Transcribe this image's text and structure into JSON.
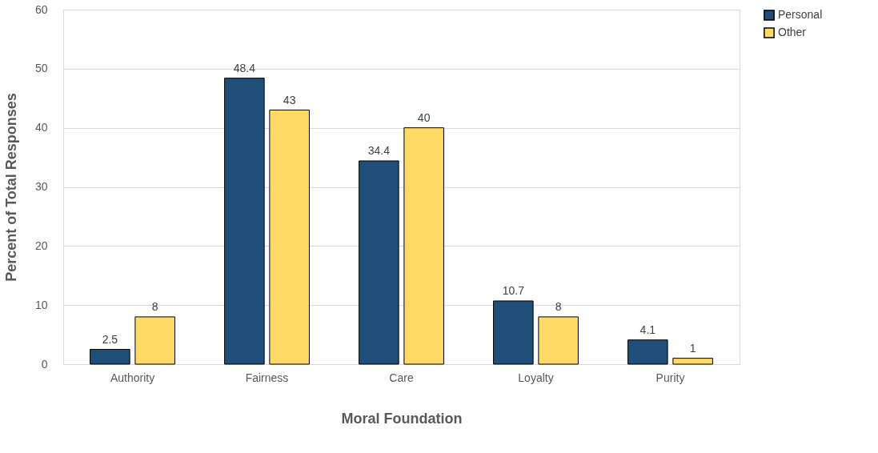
{
  "chart_data": {
    "type": "bar",
    "xlabel": "Moral Foundation",
    "ylabel": "Percent of Total Responses",
    "categories": [
      "Authority",
      "Fairness",
      "Care",
      "Loyalty",
      "Purity"
    ],
    "series": [
      {
        "name": "Personal",
        "color": "#1f4e79",
        "values": [
          2.5,
          48.4,
          34.4,
          10.7,
          4.1
        ]
      },
      {
        "name": "Other",
        "color": "#ffd966",
        "values": [
          8,
          43,
          40,
          8,
          1
        ]
      }
    ],
    "ylim": [
      0,
      60
    ],
    "yticks": [
      0,
      10,
      20,
      30,
      40,
      50,
      60
    ],
    "grid": "y",
    "legend": "right",
    "data_labels": true
  }
}
